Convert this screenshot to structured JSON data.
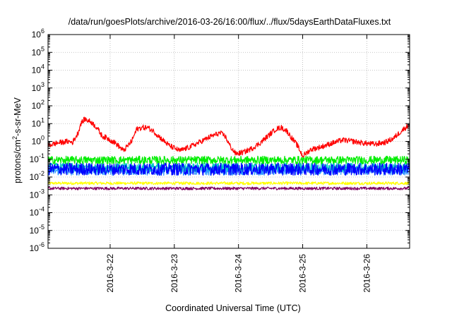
{
  "chart_data": {
    "type": "line",
    "title": "/data/run/goesPlots/archive/2016-03-26/16:00/flux/../flux/5daysEarthDataFluxes.txt",
    "xlabel": "Coordinated Universal Time (UTC)",
    "ylabel": "protons/cm²-s-sr-MeV",
    "ylabel_parts": {
      "before": "protons/cm",
      "sup": "2",
      "after": "-s-sr-MeV"
    },
    "y_scale": "log",
    "ylim": [
      1e-06,
      1000000.0
    ],
    "xlim": [
      "2016-03-21 00:46",
      "2016-03-26 16:00"
    ],
    "y_ticks": [
      {
        "value": 1e-06,
        "base": "10",
        "exp": "-6"
      },
      {
        "value": 1e-05,
        "base": "10",
        "exp": "-5"
      },
      {
        "value": 0.0001,
        "base": "10",
        "exp": "-4"
      },
      {
        "value": 0.001,
        "base": "10",
        "exp": "-3"
      },
      {
        "value": 0.01,
        "base": "10",
        "exp": "-2"
      },
      {
        "value": 0.1,
        "base": "10",
        "exp": "-1"
      },
      {
        "value": 1,
        "base": "10",
        "exp": "0"
      },
      {
        "value": 10,
        "base": "10",
        "exp": "1"
      },
      {
        "value": 100,
        "base": "10",
        "exp": "2"
      },
      {
        "value": 1000,
        "base": "10",
        "exp": "3"
      },
      {
        "value": 10000,
        "base": "10",
        "exp": "4"
      },
      {
        "value": 100000,
        "base": "10",
        "exp": "5"
      },
      {
        "value": 1000000,
        "base": "10",
        "exp": "6"
      }
    ],
    "x_ticks": [
      {
        "date": "2016-03-22",
        "label": "2016-3-22"
      },
      {
        "date": "2016-03-23",
        "label": "2016-3-23"
      },
      {
        "date": "2016-03-24",
        "label": "2016-3-24"
      },
      {
        "date": "2016-03-25",
        "label": "2016-3-25"
      },
      {
        "date": "2016-03-26",
        "label": "2016-3-26"
      }
    ],
    "grid": true,
    "series": [
      {
        "color": "#ff0000",
        "noise": 0.15,
        "points": [
          [
            "2016-03-21 00:46",
            0.6
          ],
          [
            "2016-03-21 04:00",
            0.8
          ],
          [
            "2016-03-21 08:00",
            1.0
          ],
          [
            "2016-03-21 10:00",
            0.9
          ],
          [
            "2016-03-21 12:00",
            3.0
          ],
          [
            "2016-03-21 13:00",
            10
          ],
          [
            "2016-03-21 14:30",
            18
          ],
          [
            "2016-03-21 17:00",
            12
          ],
          [
            "2016-03-21 19:00",
            6
          ],
          [
            "2016-03-21 21:00",
            2.0
          ],
          [
            "2016-03-21 23:00",
            1.5
          ],
          [
            "2016-03-22 02:00",
            0.8
          ],
          [
            "2016-03-22 05:00",
            0.3
          ],
          [
            "2016-03-22 08:00",
            1.0
          ],
          [
            "2016-03-22 10:00",
            5.0
          ],
          [
            "2016-03-22 12:00",
            6.0
          ],
          [
            "2016-03-22 14:00",
            6.0
          ],
          [
            "2016-03-22 16:00",
            4.0
          ],
          [
            "2016-03-22 19:00",
            1.5
          ],
          [
            "2016-03-22 22:00",
            0.6
          ],
          [
            "2016-03-23 02:00",
            0.3
          ],
          [
            "2016-03-23 06:00",
            0.5
          ],
          [
            "2016-03-23 10:00",
            1.0
          ],
          [
            "2016-03-23 14:00",
            2.0
          ],
          [
            "2016-03-23 17:00",
            3.0
          ],
          [
            "2016-03-23 19:00",
            2.0
          ],
          [
            "2016-03-23 21:00",
            0.5
          ],
          [
            "2016-03-23 23:00",
            0.2
          ],
          [
            "2016-03-24 02:00",
            0.25
          ],
          [
            "2016-03-24 05:00",
            0.4
          ],
          [
            "2016-03-24 08:00",
            0.8
          ],
          [
            "2016-03-24 11:00",
            2.0
          ],
          [
            "2016-03-24 14:00",
            5.0
          ],
          [
            "2016-03-24 16:00",
            6.0
          ],
          [
            "2016-03-24 18:00",
            4.0
          ],
          [
            "2016-03-24 20:00",
            1.5
          ],
          [
            "2016-03-24 22:00",
            0.6
          ],
          [
            "2016-03-25 00:00",
            0.15
          ],
          [
            "2016-03-25 03:00",
            0.35
          ],
          [
            "2016-03-25 07:00",
            0.5
          ],
          [
            "2016-03-25 11:00",
            0.8
          ],
          [
            "2016-03-25 15:00",
            1.2
          ],
          [
            "2016-03-25 19:00",
            1.0
          ],
          [
            "2016-03-25 23:00",
            0.8
          ],
          [
            "2016-03-26 03:00",
            0.7
          ],
          [
            "2016-03-26 07:00",
            0.9
          ],
          [
            "2016-03-26 10:00",
            1.5
          ],
          [
            "2016-03-26 13:00",
            4.0
          ],
          [
            "2016-03-26 16:00",
            9.0
          ]
        ]
      },
      {
        "color": "#00ee00",
        "points": [
          [
            "2016-03-21 00:46",
            0.09
          ],
          [
            "2016-03-26 16:00",
            0.09
          ]
        ],
        "noise": 0.22
      },
      {
        "color": "#00c8c8",
        "points": [
          [
            "2016-03-21 00:46",
            0.035
          ],
          [
            "2016-03-26 16:00",
            0.035
          ]
        ],
        "noise": 0.25
      },
      {
        "color": "#0000ff",
        "points": [
          [
            "2016-03-21 00:46",
            0.028
          ],
          [
            "2016-03-26 16:00",
            0.028
          ]
        ],
        "noise": 0.35
      },
      {
        "color": "#3399ff",
        "points": [
          [
            "2016-03-21 00:46",
            0.022
          ],
          [
            "2016-03-26 16:00",
            0.022
          ]
        ],
        "noise": 0.25
      },
      {
        "color": "#ffff00",
        "points": [
          [
            "2016-03-21 00:46",
            0.0045
          ],
          [
            "2016-03-26 16:00",
            0.0045
          ]
        ],
        "noise": 0.08
      },
      {
        "color": "#800060",
        "points": [
          [
            "2016-03-21 00:46",
            0.0023
          ],
          [
            "2016-03-26 16:00",
            0.0023
          ]
        ],
        "noise": 0.08
      }
    ]
  }
}
